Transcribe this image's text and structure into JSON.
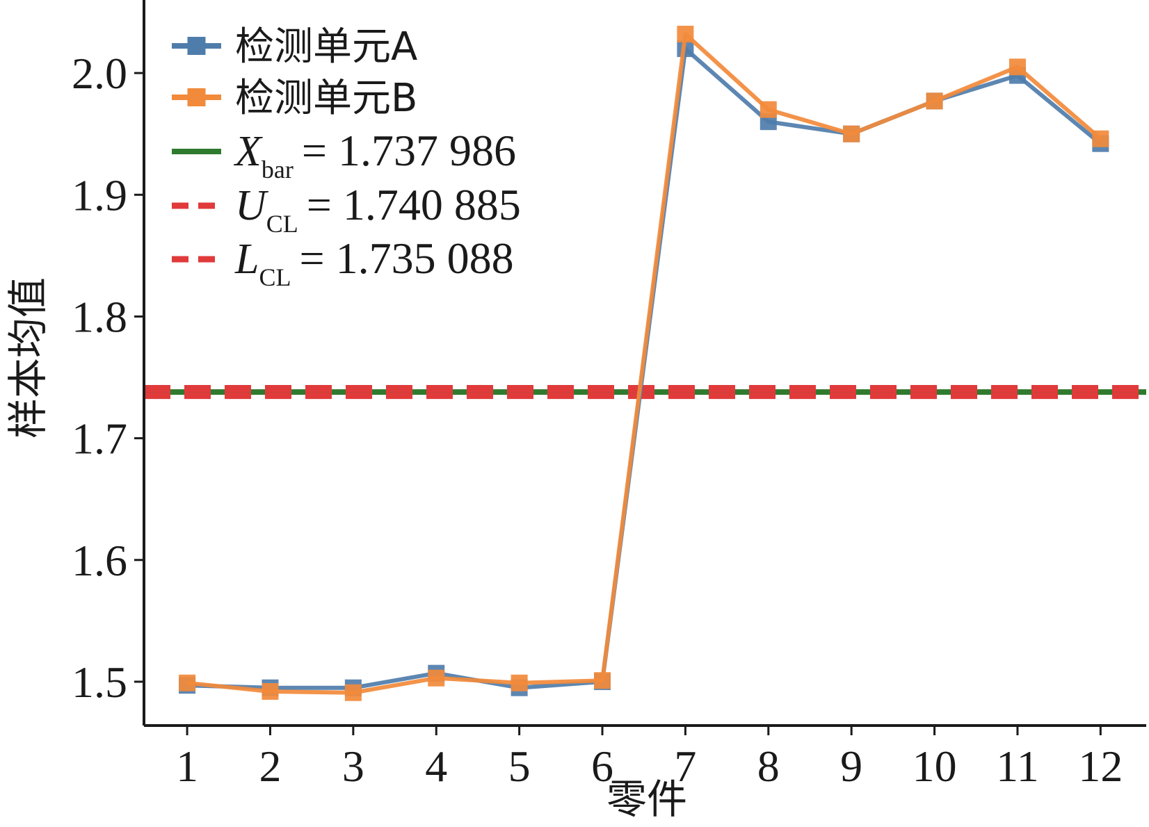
{
  "chart_data": {
    "type": "line",
    "xlabel": "零件",
    "ylabel": "样本均值",
    "categories": [
      "1",
      "2",
      "3",
      "4",
      "5",
      "6",
      "7",
      "8",
      "9",
      "10",
      "11",
      "12"
    ],
    "yticks": [
      "1.5",
      "1.6",
      "1.7",
      "1.8",
      "1.9",
      "2.0"
    ],
    "ylim": [
      1.464,
      2.06
    ],
    "xlim": [
      0.48,
      12.55
    ],
    "grid": false,
    "legend_position": "top-left",
    "series": [
      {
        "name": "检测单元A",
        "color": "#4f7dab",
        "marker": "square",
        "values": [
          1.497,
          1.495,
          1.495,
          1.507,
          1.495,
          1.5,
          2.02,
          1.96,
          1.95,
          1.977,
          1.998,
          1.942
        ]
      },
      {
        "name": "检测单元B",
        "color": "#f28a3b",
        "marker": "square",
        "values": [
          1.499,
          1.492,
          1.491,
          1.503,
          1.499,
          1.501,
          2.032,
          1.97,
          1.95,
          1.977,
          2.005,
          1.946
        ]
      }
    ],
    "reference_lines": [
      {
        "symbol": "X",
        "subscript": "bar",
        "value_text": "= 1.737 986",
        "value": 1.737986,
        "color": "#2f7a2f",
        "style": "solid"
      },
      {
        "symbol": "U",
        "subscript": "CL",
        "value_text": "= 1.740 885",
        "value": 1.740885,
        "color": "#e03a3a",
        "style": "dashed"
      },
      {
        "symbol": "L",
        "subscript": "CL",
        "value_text": "= 1.735 088",
        "value": 1.735088,
        "color": "#e03a3a",
        "style": "dashed"
      }
    ]
  }
}
